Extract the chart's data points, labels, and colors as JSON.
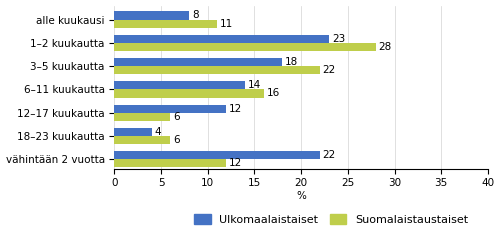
{
  "categories": [
    "alle kuukausi",
    "1–2 kuukautta",
    "3–5 kuukautta",
    "6–11 kuukautta",
    "12–17 kuukautta",
    "18–23 kuukautta",
    "vähintään 2 vuotta"
  ],
  "ulkomaalaistaustaiset": [
    8,
    23,
    18,
    14,
    12,
    4,
    22
  ],
  "suomalaistaustaiset": [
    11,
    28,
    22,
    16,
    6,
    6,
    12
  ],
  "color_ulko": "#4472C4",
  "color_suomi": "#BFCE4B",
  "xlabel": "%",
  "xlim": [
    0,
    40
  ],
  "xticks": [
    0,
    5,
    10,
    15,
    20,
    25,
    30,
    35,
    40
  ],
  "legend_ulko": "Ulkomaalaistaiset",
  "legend_suomi": "Suomalaistaustaiset",
  "bar_height": 0.35,
  "label_fontsize": 7.5,
  "tick_fontsize": 7.5,
  "legend_fontsize": 8
}
